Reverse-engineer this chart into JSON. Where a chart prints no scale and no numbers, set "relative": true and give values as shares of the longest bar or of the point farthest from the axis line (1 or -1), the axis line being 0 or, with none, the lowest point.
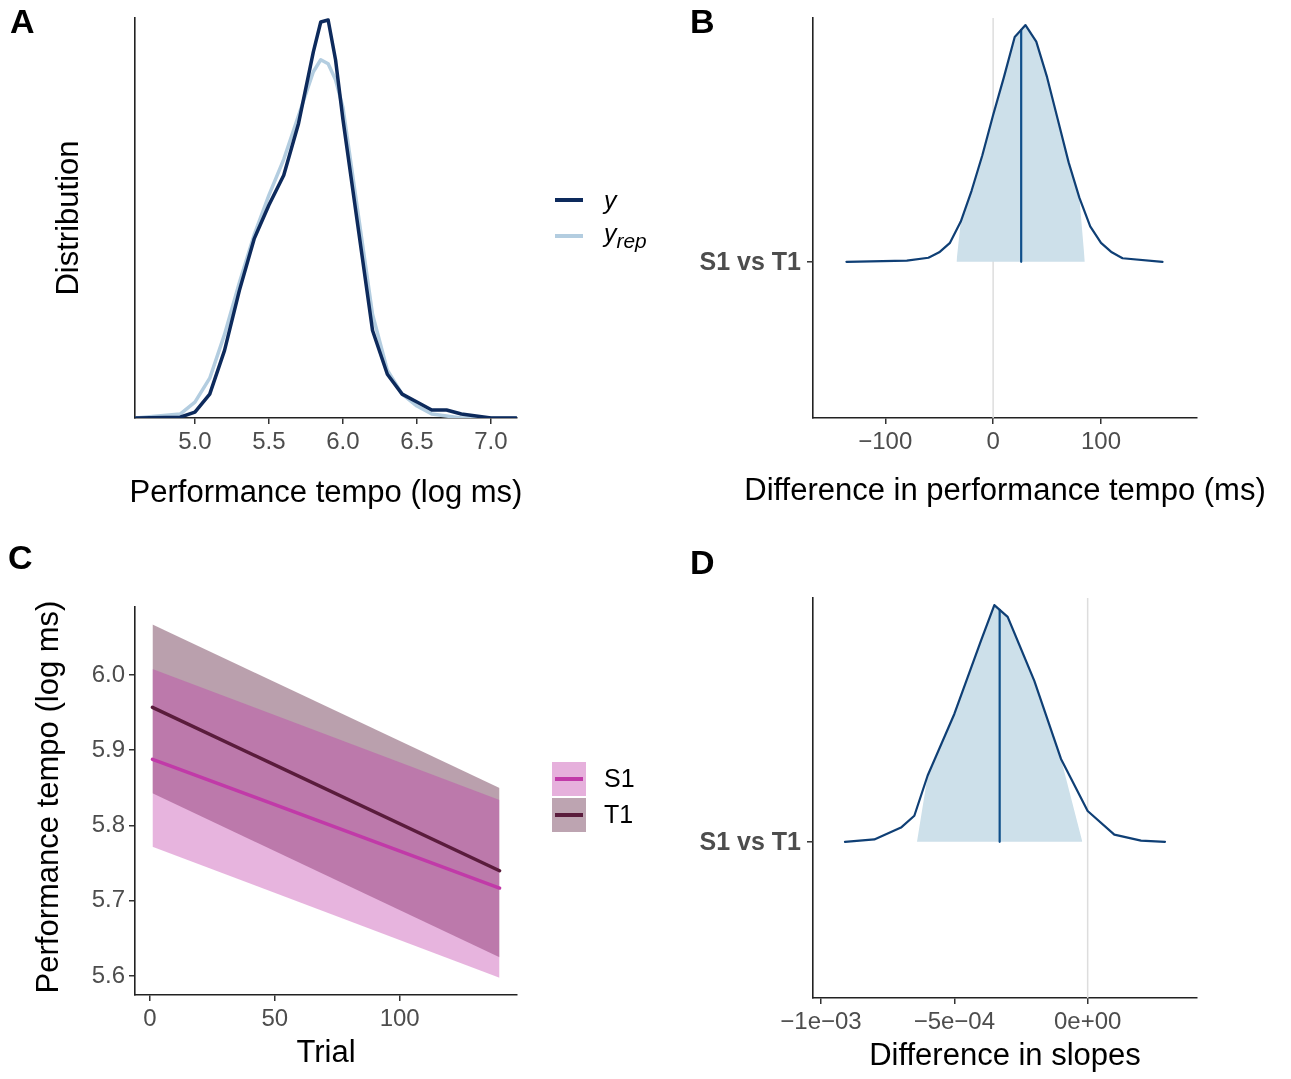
{
  "chart_data": [
    {
      "type": "line",
      "title": "A",
      "xlabel": "Performance tempo (log ms)",
      "ylabel": "Distribution",
      "relative": true,
      "legend": "right",
      "xlim": [
        4.595,
        7.176
      ],
      "xticks": [
        {
          "value": 5,
          "label": "5.0"
        },
        5.5,
        {
          "value": 6,
          "label": "6.0"
        },
        6.5,
        {
          "value": 7,
          "label": "7.0"
        }
      ],
      "x": [
        4.6,
        4.9,
        5.0,
        5.1,
        5.2,
        5.3,
        5.4,
        5.5,
        5.6,
        5.7,
        5.8,
        5.85,
        5.9,
        5.95,
        6.0,
        6.1,
        6.2,
        6.3,
        6.4,
        6.5,
        6.6,
        6.7,
        6.8,
        7.0,
        7.17
      ],
      "series": [
        {
          "name": "y",
          "color": "#0d2a5c",
          "values": [
            0,
            0.002,
            0.015,
            0.06,
            0.17,
            0.32,
            0.45,
            0.535,
            0.61,
            0.74,
            0.92,
            0.995,
            1.0,
            0.9,
            0.75,
            0.485,
            0.22,
            0.11,
            0.06,
            0.04,
            0.02,
            0.02,
            0.01,
            0,
            0
          ]
        },
        {
          "name": "y$_{rep}$",
          "color": "#b3cde0",
          "values": [
            0,
            0.01,
            0.04,
            0.1,
            0.21,
            0.34,
            0.46,
            0.56,
            0.65,
            0.76,
            0.87,
            0.9,
            0.89,
            0.85,
            0.78,
            0.52,
            0.26,
            0.12,
            0.06,
            0.03,
            0.01,
            0.005,
            0,
            0,
            0
          ]
        }
      ]
    },
    {
      "type": "line",
      "title": "B",
      "xlabel": "Difference in performance tempo (ms)",
      "relative": true,
      "annotations": [
        "S1 vs T1"
      ],
      "xlim": [
        -167,
        189
      ],
      "xticks": [
        {
          "value": -100,
          "label": "−100"
        },
        0,
        100
      ],
      "ref_lines": [
        {
          "axis": "x",
          "value": 0,
          "color": "#dddddd"
        }
      ],
      "series": [
        {
          "color": "#0f3f75",
          "x": [
            -136,
            -80,
            -60,
            -50,
            -40,
            -30,
            -20,
            -10,
            0,
            10,
            20,
            30,
            40,
            50,
            60,
            70,
            80,
            90,
            100,
            110,
            120,
            157
          ],
          "values": [
            0,
            0.005,
            0.017,
            0.04,
            0.08,
            0.17,
            0.3,
            0.45,
            0.62,
            0.78,
            0.95,
            1.0,
            0.93,
            0.78,
            0.6,
            0.42,
            0.27,
            0.15,
            0.08,
            0.04,
            0.015,
            0
          ]
        },
        {
          "type": "area",
          "color": "#cde0ea",
          "x": [
            -34,
            -30,
            -20,
            -10,
            0,
            10,
            20,
            30,
            40,
            50,
            60,
            70,
            80,
            85
          ],
          "values": [
            0,
            0.17,
            0.3,
            0.45,
            0.62,
            0.78,
            0.95,
            1.0,
            0.93,
            0.78,
            0.6,
            0.42,
            0.27,
            0
          ]
        },
        {
          "color": "#0f4f8a",
          "x": [
            26,
            26
          ],
          "values": [
            0,
            0.98
          ]
        }
      ]
    },
    {
      "type": "line",
      "title": "C",
      "xlabel": "Trial",
      "ylabel": "Performance tempo (log ms)",
      "legend": "right",
      "xlim": [
        -6,
        147
      ],
      "xticks": [
        0,
        50,
        100
      ],
      "ylim": [
        5.575,
        6.091
      ],
      "yticks": [
        5.6,
        5.7,
        5.8,
        5.9,
        {
          "value": 6,
          "label": "6.0"
        }
      ],
      "x": [
        1,
        140
      ],
      "series": [
        {
          "name": "S1",
          "color": "#c13aa8",
          "values": [
            5.888,
            5.717
          ],
          "lower": [
            5.772,
            5.598
          ],
          "upper": [
            6.008,
            5.834
          ]
        },
        {
          "name": "T1",
          "color": "#5a1c3c",
          "values": [
            5.957,
            5.74
          ],
          "lower": [
            5.843,
            5.625
          ],
          "upper": [
            6.067,
            5.85
          ]
        }
      ]
    },
    {
      "type": "line",
      "title": "D",
      "xlabel": "Difference in slopes",
      "relative": true,
      "annotations": [
        "S1 vs T1"
      ],
      "xlim": [
        -0.00103,
        0.00041
      ],
      "xticks": [
        {
          "value": -0.001,
          "label": "−1e−03"
        },
        {
          "value": -0.0005,
          "label": "−5e−04"
        },
        {
          "value": 0,
          "label": "0e+00"
        }
      ],
      "ref_lines": [
        {
          "axis": "x",
          "value": 0,
          "color": "#dddddd"
        }
      ],
      "series": [
        {
          "color": "#0f3f75",
          "x": [
            -0.00091,
            -0.0008,
            -0.0007,
            -0.00065,
            -0.0006,
            -0.0005,
            -0.0004,
            -0.00035,
            -0.0003,
            -0.0002,
            -0.0001,
            0,
            0.0001,
            0.0002,
            0.00029
          ],
          "values": [
            0,
            0.01,
            0.06,
            0.11,
            0.28,
            0.54,
            0.85,
            1.0,
            0.95,
            0.68,
            0.35,
            0.13,
            0.03,
            0.005,
            0
          ]
        },
        {
          "type": "area",
          "color": "#cde0ea",
          "x": [
            -0.00064,
            -0.0006,
            -0.0005,
            -0.0004,
            -0.00035,
            -0.0003,
            -0.0002,
            -0.0001,
            -2e-05
          ],
          "values": [
            0,
            0.28,
            0.54,
            0.85,
            1.0,
            0.95,
            0.68,
            0.35,
            0
          ]
        },
        {
          "color": "#0f4f8a",
          "x": [
            -0.00033,
            -0.00033
          ],
          "values": [
            0,
            0.98
          ]
        }
      ]
    }
  ]
}
